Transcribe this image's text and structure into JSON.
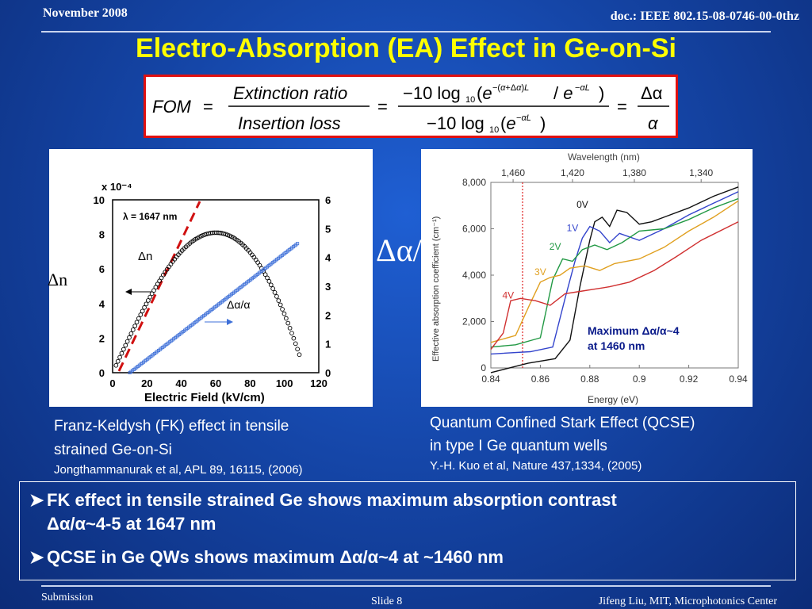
{
  "header": {
    "date": "November 2008",
    "doc": "doc.: IEEE 802.15-08-0746-00-0thz"
  },
  "title": "Electro-Absorption (EA) Effect in Ge-on-Si",
  "formula": {
    "lhs": "FOM =",
    "frac1_num": "Extinction ratio",
    "frac1_den": "Insertion loss",
    "eq2": "=",
    "frac2_num": "−10 log₁₀(e^−(α+Δα)L / e^−αL)",
    "frac2_den": "−10 log₁₀(e^−αL)",
    "eq3": "=",
    "frac3_num": "Δα",
    "frac3_den": "α"
  },
  "left_figure": {
    "scale_label": "x 10⁻⁴",
    "lambda_label": "λ = 1647 nm",
    "dn_curve_label": "Δn",
    "da_curve_label": "Δα/α",
    "y_left_label": "Δn",
    "xlabel": "Electric Field (kV/cm)",
    "x_ticks": [
      "0",
      "20",
      "40",
      "60",
      "80",
      "100",
      "120"
    ],
    "y_left_ticks": [
      "0",
      "2",
      "4",
      "6",
      "8",
      "10"
    ],
    "y_right_ticks": [
      "0",
      "1",
      "2",
      "3",
      "4",
      "5",
      "6"
    ]
  },
  "side_label": "Δα/α",
  "right_figure": {
    "top_axis_label": "Wavelength (nm)",
    "top_ticks": [
      "1,460",
      "1,420",
      "1,380",
      "1,340"
    ],
    "ylabel": "Effective absorption coefficient (cm⁻¹)",
    "xlabel": "Energy (eV)",
    "x_ticks": [
      "0.84",
      "0.86",
      "0.88",
      "0.9",
      "0.92",
      "0.94"
    ],
    "y_ticks": [
      "0",
      "2,000",
      "4,000",
      "6,000",
      "8,000"
    ],
    "curve_labels": [
      "0V",
      "1V",
      "2V",
      "3V",
      "4V"
    ],
    "annotation_line1": "Maximum Δα/α~4",
    "annotation_line2": "at 1460 nm"
  },
  "captions": {
    "left_1": "Franz-Keldysh (FK) effect in tensile",
    "left_2": "strained Ge-on-Si",
    "left_ref": "Jongthammanurak et al, APL 89, 16115, (2006)",
    "right_1": "Quantum Confined Stark Effect (QCSE)",
    "right_2": "in type I Ge quantum wells",
    "right_ref": "Y.-H. Kuo et al, Nature 437,1334, (2005)"
  },
  "bullets": {
    "b1_line1": "FK effect in tensile strained Ge shows maximum absorption contrast",
    "b1_line2": "Δα/α~4-5  at 1647 nm",
    "b2": "QCSE in Ge QWs shows maximum Δα/α~4 at ~1460 nm"
  },
  "footer": {
    "submission": "Submission",
    "slide": "Slide 8",
    "author": "Jifeng Liu, MIT, Microphotonics Center"
  },
  "colors": {
    "title": "#ffff00",
    "formula_border": "#e01010",
    "background": "#1546a8"
  }
}
